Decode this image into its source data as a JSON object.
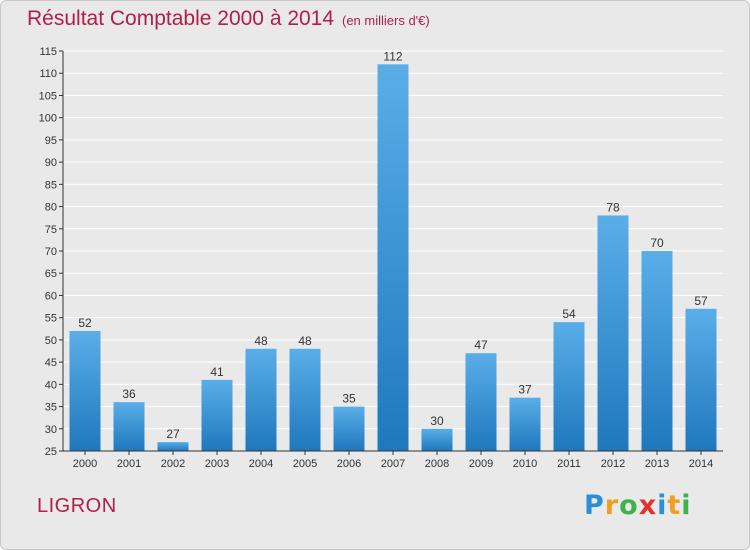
{
  "chart_data": {
    "type": "bar",
    "title": "Résultat Comptable 2000 à 2014",
    "subtitle": "(en milliers d'€)",
    "xlabel": "",
    "ylabel": "",
    "ylim": [
      25,
      115
    ],
    "yticks": [
      25,
      30,
      35,
      40,
      45,
      50,
      55,
      60,
      65,
      70,
      75,
      80,
      85,
      90,
      95,
      100,
      105,
      110,
      115
    ],
    "grid": true,
    "categories": [
      "2000",
      "2001",
      "2002",
      "2003",
      "2004",
      "2005",
      "2006",
      "2007",
      "2008",
      "2009",
      "2010",
      "2011",
      "2012",
      "2013",
      "2014"
    ],
    "values": [
      52,
      36,
      27,
      41,
      48,
      48,
      35,
      112,
      30,
      47,
      37,
      54,
      78,
      70,
      57
    ]
  },
  "place_name": "LIGRON",
  "logo": {
    "letters": [
      "P",
      "r",
      "o",
      "x",
      "i",
      "t",
      "i"
    ],
    "colors": [
      "#2a8fd6",
      "#f0a020",
      "#3db34a",
      "#e0322a",
      "#2a8fd6",
      "#f0a020",
      "#3db34a"
    ]
  },
  "colors": {
    "bar_top": "#5aaee8",
    "bar_bottom": "#1f78bd",
    "accent": "#b21e4a",
    "grid": "#ffffff"
  }
}
